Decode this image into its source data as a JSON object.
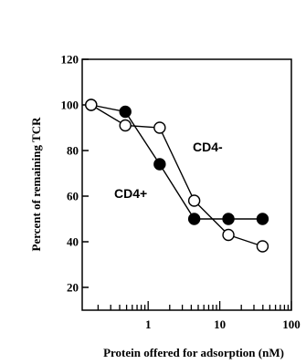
{
  "chart_data": {
    "type": "line",
    "xlabel": "Protein offered for adsorption (nM)",
    "ylabel": "Percent of remaining TCR",
    "xscale": "log",
    "xlim": [
      0.12,
      100
    ],
    "ylim": [
      10,
      120
    ],
    "x_ticks": [
      1,
      10,
      100
    ],
    "x_tick_labels": [
      "1",
      "10",
      "100"
    ],
    "y_ticks": [
      20,
      40,
      60,
      80,
      100,
      120
    ],
    "y_tick_labels": [
      "20",
      "40",
      "60",
      "80",
      "100",
      "120"
    ],
    "grid": false,
    "legend": "none",
    "series": [
      {
        "name": "CD4+",
        "marker": "filled-circle",
        "x": [
          0.16,
          0.48,
          1.45,
          4.4,
          13.2,
          39.6
        ],
        "y": [
          100,
          97,
          74,
          50,
          50,
          50
        ]
      },
      {
        "name": "CD4-",
        "marker": "open-circle",
        "x": [
          0.16,
          0.48,
          1.45,
          4.4,
          13.2,
          39.6
        ],
        "y": [
          100,
          91,
          90,
          58,
          43,
          38
        ]
      }
    ],
    "annotations": [
      {
        "text": "CD4-",
        "series": "CD4-"
      },
      {
        "text": "CD4+",
        "series": "CD4+"
      }
    ]
  }
}
